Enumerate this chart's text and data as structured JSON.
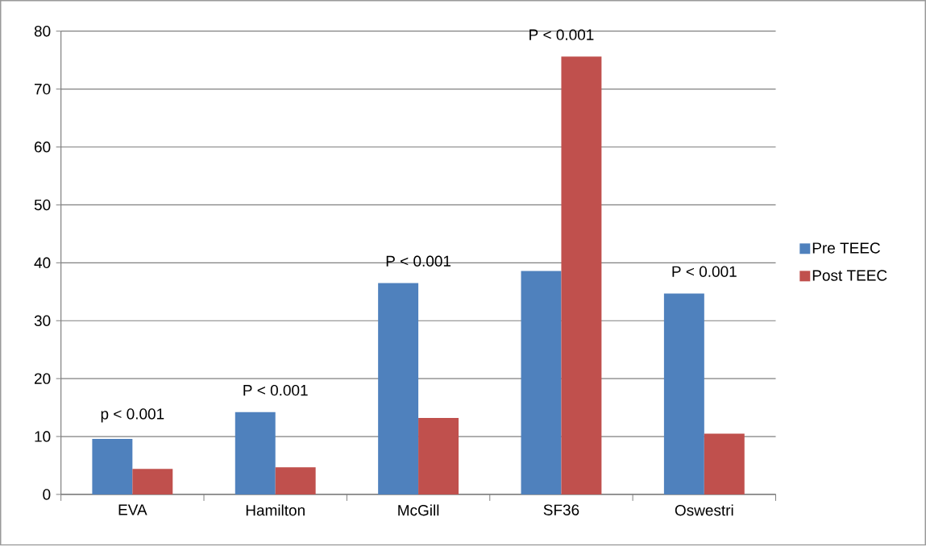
{
  "chart_data": {
    "type": "bar",
    "categories": [
      "EVA",
      "Hamilton",
      "McGill",
      "SF36",
      "Oswestri"
    ],
    "series": [
      {
        "name": "Pre TEEC",
        "color": "#4f81bd",
        "values": [
          9.6,
          14.2,
          36.5,
          38.6,
          34.7
        ]
      },
      {
        "name": "Post TEEC",
        "color": "#c0504d",
        "values": [
          4.4,
          4.7,
          13.2,
          75.6,
          10.5
        ]
      }
    ],
    "ylim": [
      0,
      80
    ],
    "yticks": [
      0,
      10,
      20,
      30,
      40,
      50,
      60,
      70,
      80
    ],
    "grid": "y",
    "legend": "right",
    "annotations": [
      {
        "text": "p < 0.001",
        "x": "EVA",
        "y": 9.6
      },
      {
        "text": "P < 0.001",
        "x": "Hamilton",
        "y": 14.2
      },
      {
        "text": "P < 0.001",
        "x": "McGill",
        "y": 36.5
      },
      {
        "text": "P < 0.001",
        "x": "SF36",
        "y": 75.6
      },
      {
        "text": "P < 0.001",
        "x": "Oswestri",
        "y": 34.7
      }
    ]
  }
}
